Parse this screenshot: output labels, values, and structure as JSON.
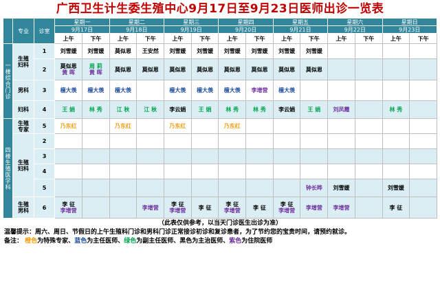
{
  "title": "广西卫生计生委生殖中心9月17日至9月23日医师出诊一览表",
  "header": {
    "specialty": "专业",
    "room": "诊室",
    "days": [
      {
        "weekday": "星期一",
        "date": "9月17日"
      },
      {
        "weekday": "星期二",
        "date": "9月18日"
      },
      {
        "weekday": "星期三",
        "date": "9月19日"
      },
      {
        "weekday": "星期四",
        "date": "9月20日"
      },
      {
        "weekday": "星期五",
        "date": "9月21日"
      },
      {
        "weekday": "星期六",
        "date": "9月22日"
      },
      {
        "weekday": "星期日",
        "date": "9月23日"
      }
    ],
    "am": "上午",
    "pm": "下午"
  },
  "sections": [
    {
      "name": "一楼综合门诊",
      "groups": [
        {
          "name": "生殖妇科",
          "rooms": [
            {
              "room": "1",
              "cells": [
                [
                  {
                    "t": "刘雪媛",
                    "c": "k"
                  }
                ],
                [
                  {
                    "t": "刘雪媛",
                    "c": "k"
                  }
                ],
                [
                  {
                    "t": "莫似恩",
                    "c": "k"
                  }
                ],
                [
                  {
                    "t": "王安然",
                    "c": "k"
                  }
                ],
                [
                  {
                    "t": "刘雪媛",
                    "c": "k"
                  }
                ],
                [
                  {
                    "t": "刘雪媛",
                    "c": "k"
                  }
                ],
                [
                  {
                    "t": "刘雪媛",
                    "c": "k"
                  }
                ],
                [
                  {
                    "t": "刘雪媛",
                    "c": "k"
                  }
                ],
                [
                  {
                    "t": "刘雪媛",
                    "c": "k"
                  }
                ],
                [
                  {
                    "t": "刘雪媛",
                    "c": "k"
                  }
                ],
                [],
                [],
                [],
                []
              ]
            },
            {
              "room": "2",
              "cells": [
                [
                  {
                    "t": "莫似恩",
                    "c": "k"
                  },
                  {
                    "t": "黄 晖",
                    "c": "p"
                  }
                ],
                [
                  {
                    "t": "周 莉",
                    "c": "g"
                  },
                  {
                    "t": "黄 晖",
                    "c": "p"
                  }
                ],
                [
                  {
                    "t": "莫似恩",
                    "c": "k"
                  }
                ],
                [
                  {
                    "t": "莫似恩",
                    "c": "k"
                  }
                ],
                [
                  {
                    "t": "莫似恩",
                    "c": "k"
                  }
                ],
                [
                  {
                    "t": "莫似恩",
                    "c": "k"
                  }
                ],
                [
                  {
                    "t": "莫似恩",
                    "c": "k"
                  }
                ],
                [
                  {
                    "t": "莫似恩",
                    "c": "k"
                  }
                ],
                [
                  {
                    "t": "莫似恩",
                    "c": "k"
                  }
                ],
                [
                  {
                    "t": "莫似恩",
                    "c": "k"
                  }
                ],
                [],
                [],
                [],
                []
              ]
            }
          ]
        },
        {
          "name": "男科",
          "rooms": [
            {
              "room": "3",
              "cells": [
                [
                  {
                    "t": "檀大羡",
                    "c": "b"
                  }
                ],
                [
                  {
                    "t": "檀大羡",
                    "c": "b"
                  }
                ],
                [
                  {
                    "t": "檀大羡",
                    "c": "b"
                  }
                ],
                [],
                [
                  {
                    "t": "檀大羡",
                    "c": "b"
                  }
                ],
                [
                  {
                    "t": "檀大羡",
                    "c": "b"
                  }
                ],
                [
                  {
                    "t": "檀大羡",
                    "c": "b"
                  }
                ],
                [
                  {
                    "t": "李增营",
                    "c": "p"
                  }
                ],
                [
                  {
                    "t": "檀大羡",
                    "c": "b"
                  }
                ],
                [],
                [],
                [],
                [],
                []
              ]
            }
          ]
        },
        {
          "name": "妇科",
          "rooms": [
            {
              "room": "4",
              "cells": [
                [
                  {
                    "t": "王 娟",
                    "c": "g"
                  }
                ],
                [
                  {
                    "t": "林 秀",
                    "c": "g"
                  }
                ],
                [
                  {
                    "t": "江 秋",
                    "c": "g"
                  }
                ],
                [
                  {
                    "t": "江 秋",
                    "c": "g"
                  }
                ],
                [
                  {
                    "t": "李云娟",
                    "c": "k"
                  }
                ],
                [
                  {
                    "t": "王 娟",
                    "c": "g"
                  }
                ],
                [
                  {
                    "t": "林 秀",
                    "c": "g"
                  }
                ],
                [
                  {
                    "t": "林 秀",
                    "c": "g"
                  }
                ],
                [
                  {
                    "t": "李云娟",
                    "c": "k"
                  }
                ],
                [
                  {
                    "t": "王 娟",
                    "c": "g"
                  }
                ],
                [
                  {
                    "t": "刘凤霞",
                    "c": "p"
                  }
                ],
                [],
                [
                  {
                    "t": "林 秀",
                    "c": "g"
                  }
                ],
                []
              ]
            }
          ]
        }
      ]
    },
    {
      "name": "四楼生殖医学科",
      "groups": [
        {
          "name": "生殖专家",
          "rooms": [
            {
              "room": "5",
              "cells": [
                [
                  {
                    "t": "乃东红",
                    "c": "o"
                  }
                ],
                [],
                [
                  {
                    "t": "乃东红",
                    "c": "o"
                  }
                ],
                [],
                [
                  {
                    "t": "乃东红",
                    "c": "o"
                  }
                ],
                [],
                [
                  {
                    "t": "乃东红",
                    "c": "o"
                  }
                ],
                [],
                [],
                [],
                [],
                [],
                [],
                []
              ]
            }
          ]
        },
        {
          "name": "生殖妇科",
          "rooms": [
            {
              "room": "2",
              "cells": [
                [],
                [],
                [],
                [],
                [],
                [],
                [],
                [],
                [],
                [],
                [],
                [],
                [],
                []
              ]
            },
            {
              "room": "3",
              "cells": [
                [],
                [],
                [],
                [],
                [],
                [],
                [],
                [],
                [],
                [],
                [],
                [],
                [],
                []
              ]
            },
            {
              "room": "4",
              "cells": [
                [],
                [],
                [],
                [],
                [],
                [],
                [],
                [],
                [],
                [],
                [],
                [],
                [],
                []
              ]
            },
            {
              "room": "5",
              "cells": [
                [],
                [],
                [],
                [],
                [],
                [],
                [],
                [],
                [],
                [
                  {
                    "t": "钟长晔",
                    "c": "p"
                  }
                ],
                [
                  {
                    "t": "刘雪媛",
                    "c": "k"
                  }
                ],
                [],
                [
                  {
                    "t": "刘雪媛",
                    "c": "k"
                  }
                ],
                []
              ]
            }
          ]
        },
        {
          "name": "生殖男科",
          "rooms": [
            {
              "room": "6",
              "cells": [
                [
                  {
                    "t": "李 征",
                    "c": "k"
                  },
                  {
                    "t": "李增营",
                    "c": "p"
                  }
                ],
                [],
                [],
                [
                  {
                    "t": "李增营",
                    "c": "p"
                  }
                ],
                [
                  {
                    "t": "李 征",
                    "c": "k"
                  },
                  {
                    "t": "李增营",
                    "c": "p"
                  }
                ],
                [
                  {
                    "t": "李 征",
                    "c": "k"
                  }
                ],
                [
                  {
                    "t": "李 征",
                    "c": "k"
                  },
                  {
                    "t": "李增营",
                    "c": "p"
                  }
                ],
                [
                  {
                    "t": "李 征",
                    "c": "k"
                  }
                ],
                [
                  {
                    "t": "李 征",
                    "c": "k"
                  },
                  {
                    "t": "李增营",
                    "c": "p"
                  }
                ],
                [
                  {
                    "t": "李增营",
                    "c": "p"
                  }
                ],
                [
                  {
                    "t": "李增营",
                    "c": "p"
                  }
                ],
                [],
                [
                  {
                    "t": "李 征",
                    "c": "k"
                  }
                ],
                []
              ]
            }
          ]
        }
      ]
    }
  ],
  "footer": {
    "note": "（此表仅供参考，以当天门诊医生出诊为准）",
    "tips": "温馨提示：周六、周日、节假日的上午生殖科门诊和男科门诊正常接诊初诊和复诊患者，为了节约您的宝贵时间，请预约就诊。",
    "legend_prefix": "备注：",
    "legend": [
      {
        "color_word": "橙色",
        "meaning": "为特殊专家、",
        "c": "o"
      },
      {
        "color_word": "蓝色",
        "meaning": "为主任医师、",
        "c": "b"
      },
      {
        "color_word": "绿色",
        "meaning": "为副主任医师、",
        "c": "g"
      },
      {
        "color_word": "黑色",
        "meaning": "为主治医师、",
        "c": "k"
      },
      {
        "color_word": "紫色",
        "meaning": "为住院医师",
        "c": "p"
      }
    ]
  },
  "colors": {
    "title": "#c00000",
    "header": "#31869b",
    "shade": "#daeef3",
    "orange": "#f39c12",
    "blue": "#1f4e9e",
    "green": "#00a650",
    "black": "#000000",
    "purple": "#7030a0"
  }
}
